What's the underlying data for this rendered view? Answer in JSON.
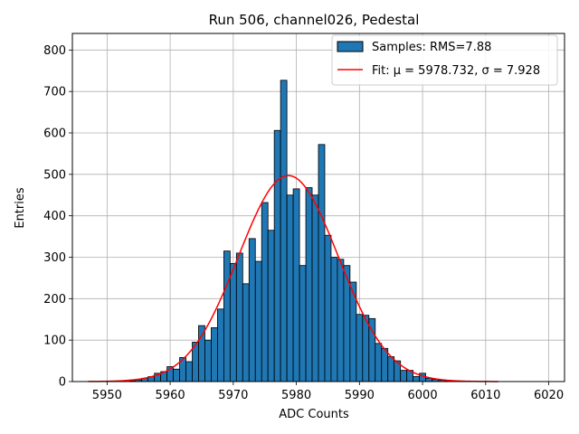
{
  "chart_data": {
    "type": "bar",
    "title": "Run 506, channel026, Pedestal",
    "xlabel": "ADC Counts",
    "ylabel": "Entries",
    "xlim": [
      5944.5,
      6022.5
    ],
    "ylim": [
      0,
      840
    ],
    "xticks": [
      5950,
      5960,
      5970,
      5980,
      5990,
      6000,
      6010,
      6020
    ],
    "yticks": [
      0,
      100,
      200,
      300,
      400,
      500,
      600,
      700,
      800
    ],
    "grid": true,
    "legend_position": "top-right",
    "series": [
      {
        "name": "Samples: RMS=7.88",
        "kind": "histogram",
        "color": "#1f77b4",
        "edgecolor": "#000000",
        "bin_width": 1,
        "bins": [
          5954,
          5955,
          5956,
          5957,
          5958,
          5959,
          5960,
          5961,
          5962,
          5963,
          5964,
          5965,
          5966,
          5967,
          5968,
          5969,
          5970,
          5971,
          5972,
          5973,
          5974,
          5975,
          5976,
          5977,
          5978,
          5979,
          5980,
          5981,
          5982,
          5983,
          5984,
          5985,
          5986,
          5987,
          5988,
          5989,
          5990,
          5991,
          5992,
          5993,
          5994,
          5995,
          5996,
          5997,
          5998,
          5999,
          6000,
          6001,
          6002,
          6003,
          6004
        ],
        "values": [
          2,
          4,
          8,
          12,
          20,
          24,
          36,
          30,
          58,
          48,
          95,
          135,
          100,
          130,
          175,
          315,
          285,
          310,
          236,
          345,
          290,
          432,
          365,
          606,
          727,
          450,
          465,
          280,
          468,
          450,
          572,
          353,
          300,
          295,
          280,
          240,
          162,
          160,
          152,
          92,
          80,
          60,
          50,
          27,
          27,
          12,
          20,
          8,
          5,
          3,
          2
        ]
      },
      {
        "name": "Fit: μ = 5978.732, σ = 7.928",
        "kind": "gaussian-fit",
        "color": "#ff0000",
        "mu": 5978.732,
        "sigma": 7.928,
        "amplitude": 497,
        "x_range": [
          5947,
          6012
        ]
      }
    ]
  }
}
